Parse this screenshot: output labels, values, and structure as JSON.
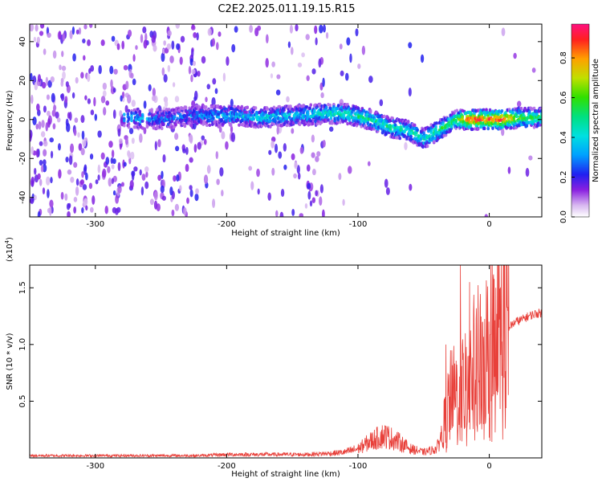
{
  "title": "C2E2.2025.011.19.15.R15",
  "colors": {
    "snr_line": "#e8403a",
    "axis": "#000000",
    "background": "#ffffff"
  },
  "chart_data": [
    {
      "type": "heatmap",
      "title": "C2E2.2025.011.19.15.R15",
      "xlabel": "Height of straight line (km)",
      "ylabel": "Frequency (Hz)",
      "xlim": [
        -350,
        40
      ],
      "ylim": [
        -50,
        49
      ],
      "x_ticks": [
        -300,
        -200,
        -100,
        0
      ],
      "y_ticks": [
        -40,
        -20,
        0,
        20,
        40
      ],
      "colorbar": {
        "label": "Normalized spectral amplitude",
        "range": [
          0.0,
          0.97
        ],
        "ticks": [
          0.0,
          0.2,
          0.4,
          0.6,
          0.8
        ],
        "colormap": "rainbow (purple to red)"
      },
      "ridge": [
        {
          "x": -275,
          "freq": 1,
          "amp": 0.35
        },
        {
          "x": -250,
          "freq": 0,
          "amp": 0.3
        },
        {
          "x": -225,
          "freq": 2,
          "amp": 0.3
        },
        {
          "x": -200,
          "freq": 2,
          "amp": 0.35
        },
        {
          "x": -175,
          "freq": 1,
          "amp": 0.4
        },
        {
          "x": -150,
          "freq": 2,
          "amp": 0.4
        },
        {
          "x": -125,
          "freq": 3,
          "amp": 0.45
        },
        {
          "x": -110,
          "freq": 3,
          "amp": 0.5
        },
        {
          "x": -90,
          "freq": 0,
          "amp": 0.5
        },
        {
          "x": -75,
          "freq": -4,
          "amp": 0.5
        },
        {
          "x": -60,
          "freq": -6,
          "amp": 0.5
        },
        {
          "x": -50,
          "freq": -10,
          "amp": 0.45
        },
        {
          "x": -40,
          "freq": -6,
          "amp": 0.55
        },
        {
          "x": -25,
          "freq": 0,
          "amp": 0.6
        },
        {
          "x": -15,
          "freq": 0,
          "amp": 0.95
        },
        {
          "x": 0,
          "freq": 0,
          "amp": 0.9
        },
        {
          "x": 10,
          "freq": 0,
          "amp": 0.95
        },
        {
          "x": 25,
          "freq": 1,
          "amp": 0.6
        },
        {
          "x": 40,
          "freq": 1,
          "amp": 0.55
        }
      ]
    },
    {
      "type": "line",
      "xlabel": "Height of straight line (km)",
      "ylabel": "SNR (10 * v/v)",
      "y_multiplier": "(x10",
      "y_multiplier_exp": "4",
      "y_multiplier_close": ")",
      "xlim": [
        -350,
        40
      ],
      "ylim": [
        0,
        1.7
      ],
      "x_ticks": [
        -300,
        -200,
        -100,
        0
      ],
      "y_ticks": [
        0.5,
        1.0,
        1.5
      ],
      "y_tick_labels": [
        "0.5",
        "1.0",
        "1.5"
      ],
      "series": [
        {
          "x": [
            -350,
            -300,
            -250,
            -220,
            -200,
            -180,
            -160,
            -140,
            -120,
            -110,
            -100,
            -90,
            -80,
            -70,
            -60,
            -50,
            -40,
            -35,
            -30,
            -25,
            -20,
            -15,
            -10,
            -5,
            0,
            5,
            10,
            15,
            20,
            25,
            30,
            35,
            40
          ],
          "y": [
            0.02,
            0.02,
            0.02,
            0.02,
            0.03,
            0.03,
            0.03,
            0.03,
            0.04,
            0.05,
            0.08,
            0.15,
            0.2,
            0.15,
            0.08,
            0.05,
            0.08,
            0.25,
            0.5,
            0.55,
            0.6,
            0.7,
            0.8,
            0.85,
            0.95,
            1.05,
            1.1,
            1.15,
            1.2,
            1.22,
            1.25,
            1.27,
            1.28
          ]
        }
      ],
      "spikes": [
        {
          "x": -33,
          "y": 1.0
        },
        {
          "x": -22,
          "y": 1.7
        },
        {
          "x": -15,
          "y": 1.55
        },
        {
          "x": -5,
          "y": 1.2
        },
        {
          "x": 5,
          "y": 1.5
        }
      ]
    }
  ]
}
